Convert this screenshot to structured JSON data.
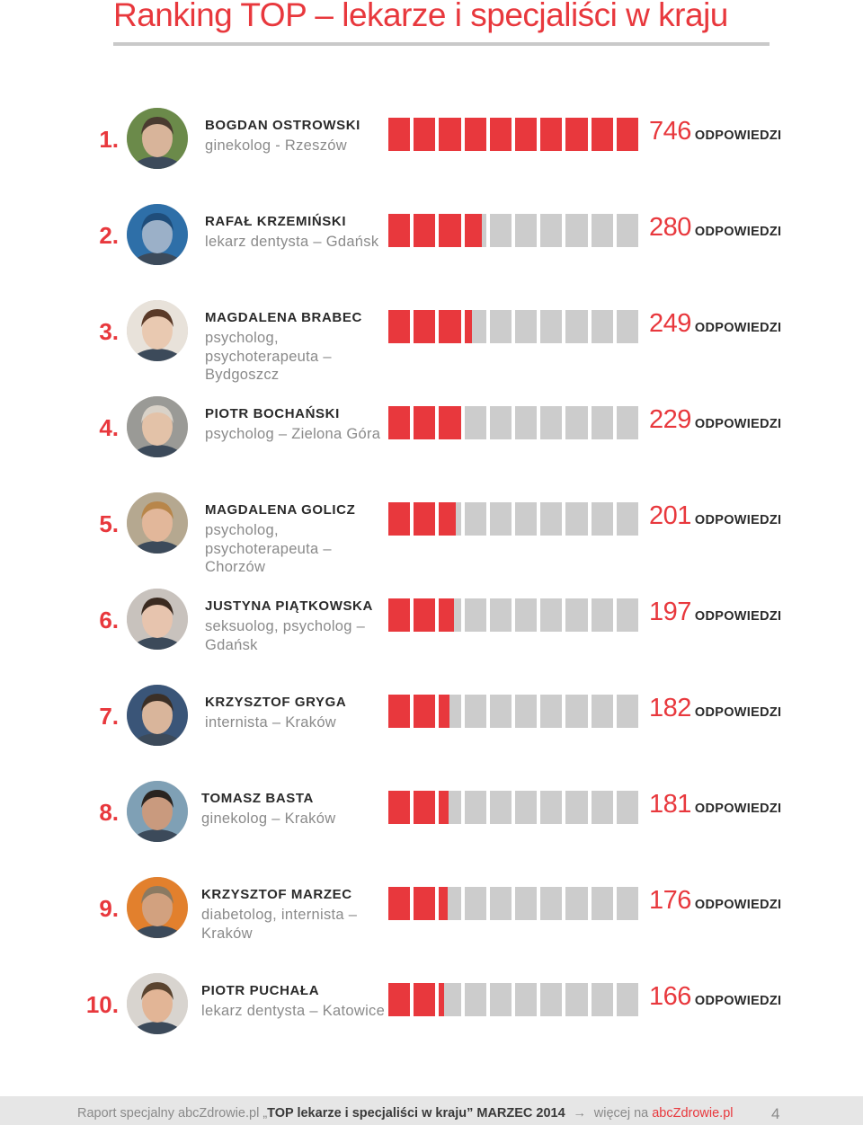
{
  "title": "Ranking TOP – lekarze i specjaliści w kraju",
  "unit_label": "ODPOWIEDZI",
  "accent_color": "#e8383d",
  "bar_cells": 10,
  "bar_max": 746,
  "entries": [
    {
      "rank": "1.",
      "name": "BOGDAN OSTROWSKI",
      "desc": "ginekolog - Rzeszów",
      "score": "746",
      "value": 746
    },
    {
      "rank": "2.",
      "name": "RAFAŁ KRZEMIŃSKI",
      "desc": "lekarz dentysta – Gdańsk",
      "score": "280",
      "value": 280
    },
    {
      "rank": "3.",
      "name": "MAGDALENA BRABEC",
      "desc": "psycholog, psychoterapeuta – Bydgoszcz",
      "score": "249",
      "value": 249
    },
    {
      "rank": "4.",
      "name": "PIOTR BOCHAŃSKI",
      "desc": "psycholog – Zielona Góra",
      "score": "229",
      "value": 229
    },
    {
      "rank": "5.",
      "name": "MAGDALENA GOLICZ",
      "desc": "psycholog, psychoterapeuta – Chorzów",
      "score": "201",
      "value": 201
    },
    {
      "rank": "6.",
      "name": "JUSTYNA PIĄTKOWSKA",
      "desc": "seksuolog, psycholog – Gdańsk",
      "score": "197",
      "value": 197
    },
    {
      "rank": "7.",
      "name": "KRZYSZTOF GRYGA",
      "desc": "internista – Kraków",
      "score": "182",
      "value": 182
    },
    {
      "rank": "8.",
      "name": "TOMASZ BASTA",
      "desc": "ginekolog – Kraków",
      "score": "181",
      "value": 181
    },
    {
      "rank": "9.",
      "name": "KRZYSZTOF MARZEC",
      "desc": "diabetolog, internista – Kraków",
      "score": "176",
      "value": 176
    },
    {
      "rank": "10.",
      "name": "PIOTR PUCHAŁA",
      "desc": "lekarz dentysta – Katowice",
      "score": "166",
      "value": 166
    }
  ],
  "footer": {
    "prefix": "Raport specjalny abcZdrowie.pl „",
    "report_title": "TOP lekarze i specjaliści w kraju",
    "suffix": "” ",
    "date": "MARZEC 2014",
    "more_text": "więcej na ",
    "link": "abcZdrowie.pl",
    "page": "4"
  }
}
